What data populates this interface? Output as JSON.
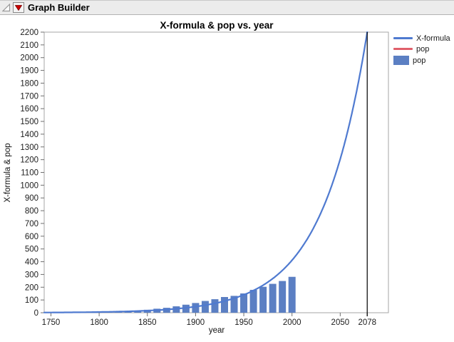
{
  "header": {
    "title": "Graph Builder"
  },
  "chart_data": {
    "type": "bar+line",
    "title": "X-formula & pop vs. year",
    "xlabel": "year",
    "ylabel": "X-formula & pop",
    "grid": false,
    "xlim": [
      1743,
      2100
    ],
    "y_axis": {
      "min": 0,
      "max": 2200,
      "step": 100
    },
    "x_ticks": [
      1750,
      1800,
      1850,
      1900,
      1950,
      2000,
      2050,
      2078
    ],
    "bars": {
      "name": "pop",
      "years": [
        1750,
        1760,
        1770,
        1780,
        1790,
        1800,
        1810,
        1820,
        1830,
        1840,
        1850,
        1860,
        1870,
        1880,
        1890,
        1900,
        1910,
        1920,
        1930,
        1940,
        1950,
        1960,
        1970,
        1980,
        1990,
        2000
      ],
      "values": [
        1.2,
        1.6,
        2.1,
        2.8,
        3.9,
        5.3,
        7.2,
        9.6,
        12.9,
        17.1,
        23.2,
        31.4,
        38.6,
        50.2,
        63.0,
        76.2,
        92.2,
        106.0,
        123.2,
        132.2,
        151.3,
        179.3,
        203.3,
        226.5,
        248.7,
        281.4
      ]
    },
    "line": {
      "name": "X-formula",
      "shape": "exponential",
      "anchor_year": 2078,
      "anchor_value": 2200,
      "growth_rate_per_year": 0.0215,
      "start_year": 1743,
      "end_year": 2078
    },
    "reference_line": {
      "x": 2078,
      "color": "#000000"
    },
    "legend": {
      "position": "right",
      "entries": [
        {
          "label": "X-formula",
          "swatch": "line",
          "color": "#4f7ad0"
        },
        {
          "label": "pop",
          "swatch": "line",
          "color": "#e05f6a"
        },
        {
          "label": "pop",
          "swatch": "bar",
          "color": "#5b7fc3"
        }
      ]
    },
    "colors": {
      "bar": "#5b7fc3",
      "line": "#4f7ad0",
      "frame": "#a6a6a6",
      "tick": "#6f6f6f",
      "label": "#1c1c1c"
    }
  }
}
